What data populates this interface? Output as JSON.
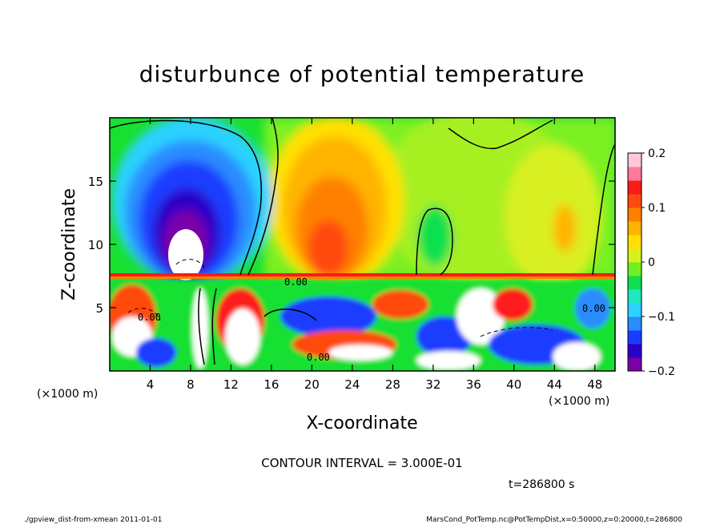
{
  "chart_data": {
    "type": "heatmap",
    "title": "disturbunce of potential temperature",
    "xlabel": "X-coordinate",
    "ylabel": "Z-coordinate",
    "x_unit_left": "(×1000 m)",
    "x_unit_right": "(×1000 m)",
    "xlim": [
      0,
      50
    ],
    "ylim": [
      0,
      20
    ],
    "x_ticks": [
      4,
      8,
      12,
      16,
      20,
      24,
      28,
      32,
      36,
      40,
      44,
      48
    ],
    "y_ticks": [
      5,
      10,
      15
    ],
    "colorbar": {
      "range": [
        -0.2,
        0.2
      ],
      "tick_values": [
        0.2,
        0.1,
        0,
        -0.1,
        -0.2
      ],
      "tick_labels": [
        "0.2",
        "0.1",
        "0",
        "−0.1",
        "−0.2"
      ],
      "colors": [
        "#7a00a8",
        "#2a00c8",
        "#1a3cff",
        "#2a8cff",
        "#2ad2ff",
        "#20e8c0",
        "#10e050",
        "#70f020",
        "#d8f020",
        "#ffe000",
        "#ffb400",
        "#ff8000",
        "#ff4a10",
        "#ff1a1a",
        "#ff7a9a",
        "#ffc8d8"
      ]
    },
    "contour_labels": [
      "0.00",
      "0.00",
      "0.00",
      "0.00"
    ],
    "contour_interval_label": "CONTOUR INTERVAL = 3.000E-01",
    "time_label": "t=286800 s"
  },
  "footer": {
    "left": "./gpview_dist-from-xmean  2011-01-01",
    "right": "MarsCond_PotTemp.nc@PotTempDist,x=0:50000,z=0:20000,t=286800"
  }
}
